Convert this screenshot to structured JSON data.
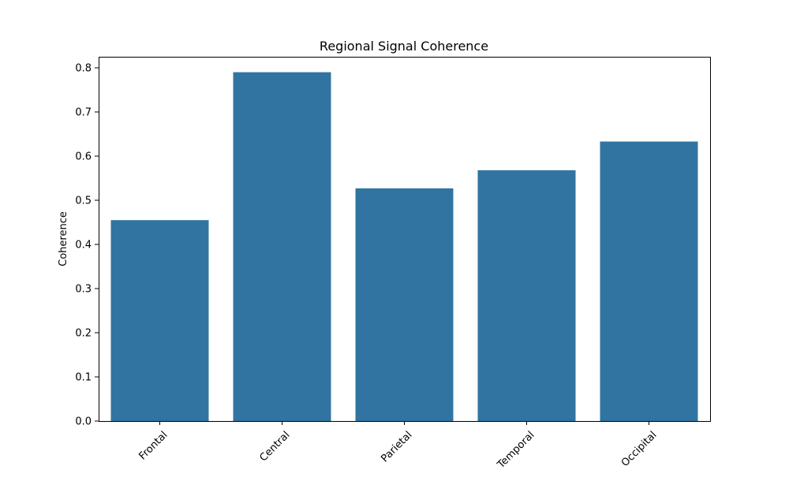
{
  "chart_data": {
    "type": "bar",
    "title": "Regional Signal Coherence",
    "xlabel": "",
    "ylabel": "Coherence",
    "categories": [
      "Frontal",
      "Central",
      "Parietal",
      "Temporal",
      "Occipital"
    ],
    "values": [
      0.455,
      0.79,
      0.527,
      0.568,
      0.633
    ],
    "ylim": [
      0,
      0.825
    ],
    "yticks": [
      0.0,
      0.1,
      0.2,
      0.3,
      0.4,
      0.5,
      0.6,
      0.7,
      0.8
    ],
    "ytick_labels": [
      "0.0",
      "0.1",
      "0.2",
      "0.3",
      "0.4",
      "0.5",
      "0.6",
      "0.7",
      "0.8"
    ],
    "bar_color": "#3274a1",
    "grid": false,
    "legend": "none",
    "xtick_rotation_deg": 45
  }
}
